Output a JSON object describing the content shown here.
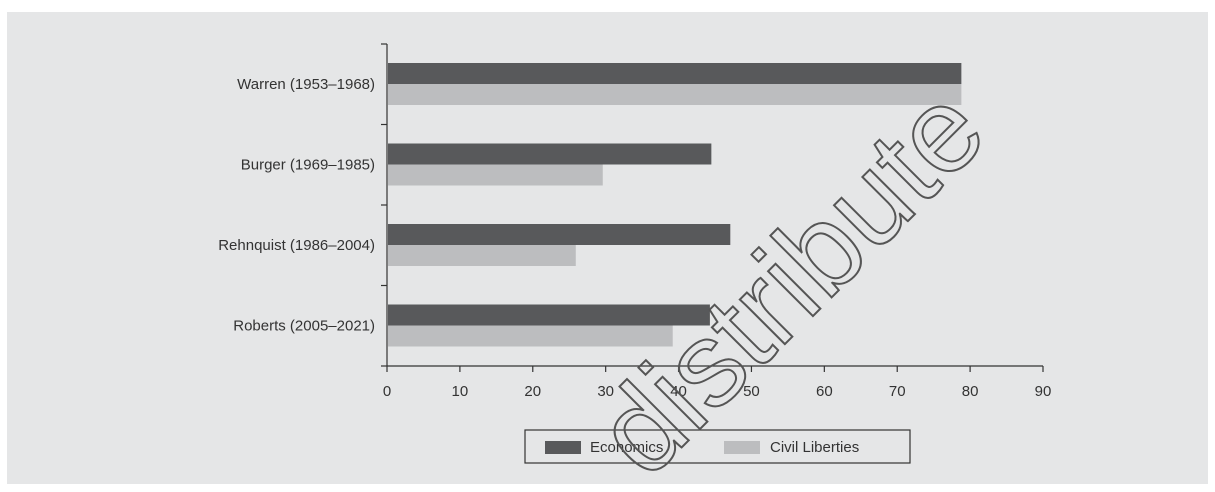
{
  "chart_data": {
    "type": "bar",
    "orientation": "horizontal",
    "categories": [
      "Warren (1953–1968)",
      "Burger (1969–1985)",
      "Rehnquist (1986–2004)",
      "Roberts (2005–2021)"
    ],
    "series": [
      {
        "name": "Economics",
        "values": [
          78.8,
          44.5,
          47.1,
          44.3
        ],
        "color": "#58595b"
      },
      {
        "name": "Civil Liberties",
        "values": [
          78.8,
          29.6,
          25.9,
          39.2
        ],
        "color": "#bcbdbf"
      }
    ],
    "x_ticks": [
      "0",
      "10",
      "20",
      "30",
      "40",
      "50",
      "60",
      "70",
      "80",
      "90"
    ],
    "xlim": [
      0,
      90
    ],
    "grid": false,
    "legend_position": "bottom-center",
    "title": "",
    "xlabel": "",
    "ylabel": ""
  },
  "colors": {
    "panel_background": "#e5e6e7",
    "axis": "#333333"
  },
  "watermark": {
    "text": "distribute"
  }
}
